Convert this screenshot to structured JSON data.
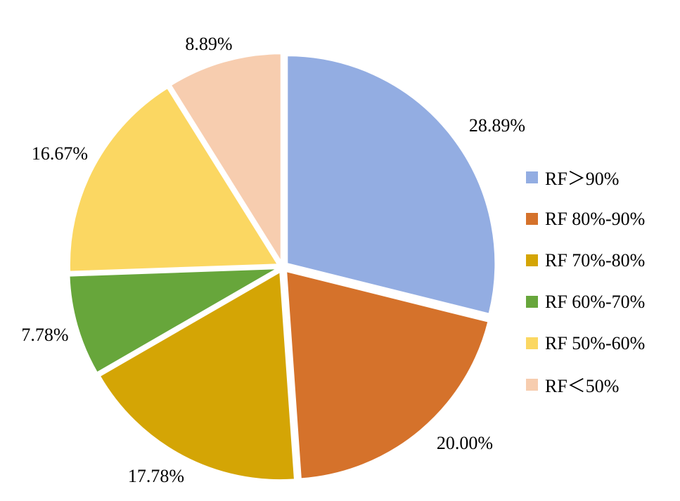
{
  "chart_data": {
    "type": "pie",
    "title": "",
    "categories": [
      "RF＞90%",
      "RF 80%-90%",
      "RF 70%-80%",
      "RF 60%-70%",
      "RF 50%-60%",
      "RF＜50%"
    ],
    "values": [
      28.89,
      20.0,
      17.78,
      7.78,
      16.67,
      8.89
    ],
    "labels": [
      "28.89%",
      "20.00%",
      "17.78%",
      "7.78%",
      "16.67%",
      "8.89%"
    ],
    "colors": [
      "#93ADE2",
      "#D5722B",
      "#D4A505",
      "#67A63B",
      "#FBD762",
      "#F7CDAF"
    ],
    "exploded": true,
    "legend_position": "right"
  }
}
